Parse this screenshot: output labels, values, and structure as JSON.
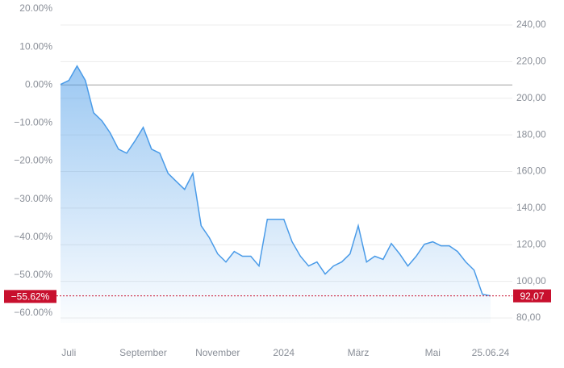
{
  "chart_data": {
    "type": "area",
    "categories": [
      null,
      "Juli",
      null,
      null,
      null,
      null,
      null,
      null,
      null,
      null,
      "September",
      null,
      null,
      null,
      null,
      null,
      null,
      null,
      null,
      "November",
      null,
      null,
      null,
      null,
      null,
      null,
      null,
      "2024",
      null,
      null,
      null,
      null,
      null,
      null,
      null,
      null,
      "März",
      null,
      null,
      null,
      null,
      null,
      null,
      null,
      null,
      "Mai",
      null,
      null,
      null,
      null,
      null,
      null,
      "25.06.24"
    ],
    "series": [
      {
        "axis": "y2",
        "color": "#4a9be8",
        "values": [
          207.5,
          209.7,
          217.6,
          209.7,
          192.1,
          187.7,
          181.1,
          172.2,
          170.0,
          176.7,
          184.1,
          172.2,
          170.0,
          159.0,
          154.6,
          150.2,
          159.0,
          130.4,
          123.8,
          115.0,
          110.6,
          116.3,
          113.7,
          113.7,
          108.4,
          133.9,
          133.9,
          133.9,
          121.6,
          113.7,
          108.4,
          110.6,
          104.0,
          108.4,
          110.6,
          115.0,
          130.4,
          110.6,
          113.7,
          112.0,
          120.7,
          115.0,
          108.4,
          113.7,
          120.3,
          121.6,
          119.4,
          119.4,
          116.3,
          110.6,
          106.2,
          93.0,
          92.07
        ]
      }
    ],
    "ylim": [
      -60,
      20
    ],
    "yticks": [
      {
        "value": 20,
        "label": "20.00%"
      },
      {
        "value": 10,
        "label": "10.00%"
      },
      {
        "value": 0,
        "label": "0.00%"
      },
      {
        "value": -10,
        "label": "−10.00%"
      },
      {
        "value": -20,
        "label": "−20.00%"
      },
      {
        "value": -30,
        "label": "−30.00%"
      },
      {
        "value": -40,
        "label": "−40.00%"
      },
      {
        "value": -50,
        "label": "−50.00%"
      },
      {
        "value": -60,
        "label": "−60.00%"
      }
    ],
    "y2lim": [
      80,
      240
    ],
    "y2ticks": [
      {
        "value": 240,
        "label": "240,00"
      },
      {
        "value": 220,
        "label": "220,00"
      },
      {
        "value": 200,
        "label": "200,00"
      },
      {
        "value": 180,
        "label": "180,00"
      },
      {
        "value": 160,
        "label": "160,00"
      },
      {
        "value": 140,
        "label": "140,00"
      },
      {
        "value": 120,
        "label": "120,00"
      },
      {
        "value": 100,
        "label": "100,00"
      },
      {
        "value": 80,
        "label": "80,00"
      }
    ],
    "markers": [
      {
        "axis": "y",
        "value": -55.62,
        "label": "−55.62%"
      },
      {
        "axis": "y2",
        "value": 92.07,
        "label": "92,07"
      }
    ],
    "marker_color": "#c8102e",
    "grid": true
  }
}
